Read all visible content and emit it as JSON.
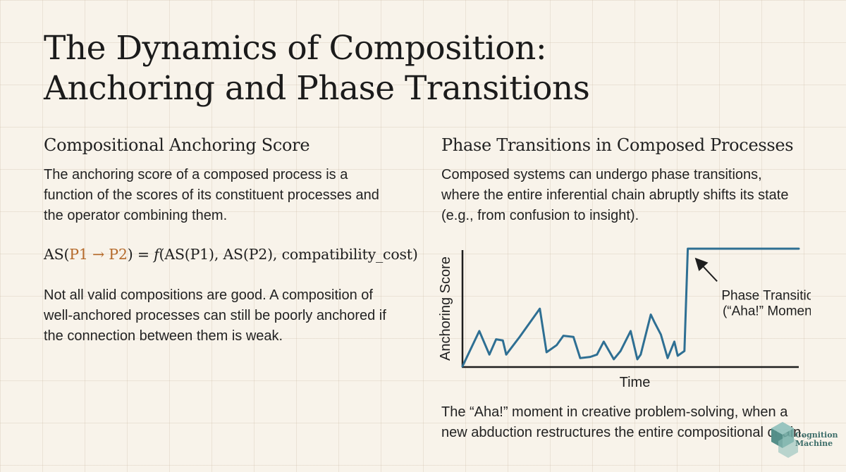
{
  "title": {
    "line1": "The Dynamics of Composition:",
    "line2": "Anchoring and Phase Transitions"
  },
  "left": {
    "heading": "Compositional Anchoring Score",
    "paragraph1": [
      "The anchoring score of a composed process is a",
      "function of the scores of its constituent processes and",
      "the operator combining them."
    ],
    "formula": {
      "prefix": "AS(",
      "highlight": "P1 → P2",
      "mid": ") = ",
      "func": "f",
      "suffix": "(AS(P1), AS(P2), compatibility_cost)"
    },
    "paragraph2": [
      "Not all valid compositions are good. A composition of",
      "well-anchored processes can still be poorly anchored if",
      "the connection between them is weak."
    ]
  },
  "right": {
    "heading": "Phase Transitions in Composed Processes",
    "paragraph1": [
      "Composed systems can undergo phase transitions,",
      "where the entire inferential chain abruptly shifts its state",
      "(e.g., from confusion to insight)."
    ],
    "caption": [
      "The “Aha!” moment in creative problem-solving, when a",
      "new abduction restructures the entire compositional chain."
    ]
  },
  "chart_data": {
    "type": "line",
    "title": "",
    "xlabel": "Time",
    "ylabel": "Anchoring Score",
    "xlim": [
      0,
      100
    ],
    "ylim": [
      0,
      100
    ],
    "series": [
      {
        "color": "#2e6f93",
        "x": [
          0,
          5,
          8,
          10,
          12,
          13,
          17,
          19,
          23,
          25,
          28,
          30,
          33,
          35,
          38,
          40,
          42,
          45,
          47,
          50,
          52,
          53,
          56,
          57,
          59,
          61,
          63,
          64,
          66,
          67,
          69,
          75,
          100
        ],
        "y": [
          0,
          30,
          10,
          23,
          22,
          10,
          25,
          33,
          49,
          12,
          18,
          26,
          25,
          7,
          8,
          10,
          21,
          6,
          13,
          30,
          6,
          10,
          44,
          38,
          27,
          7,
          21,
          9,
          13,
          100,
          100,
          100,
          100
        ]
      }
    ],
    "annotation": {
      "text_line1": "Phase Transition",
      "text_line2": "(“Aha!” Moment)",
      "target_x": 69,
      "target_y": 95
    },
    "grid": false,
    "ticks": false
  },
  "logo": {
    "line1": "Cognition",
    "line2": "Machine",
    "color": "#5f9e98"
  }
}
